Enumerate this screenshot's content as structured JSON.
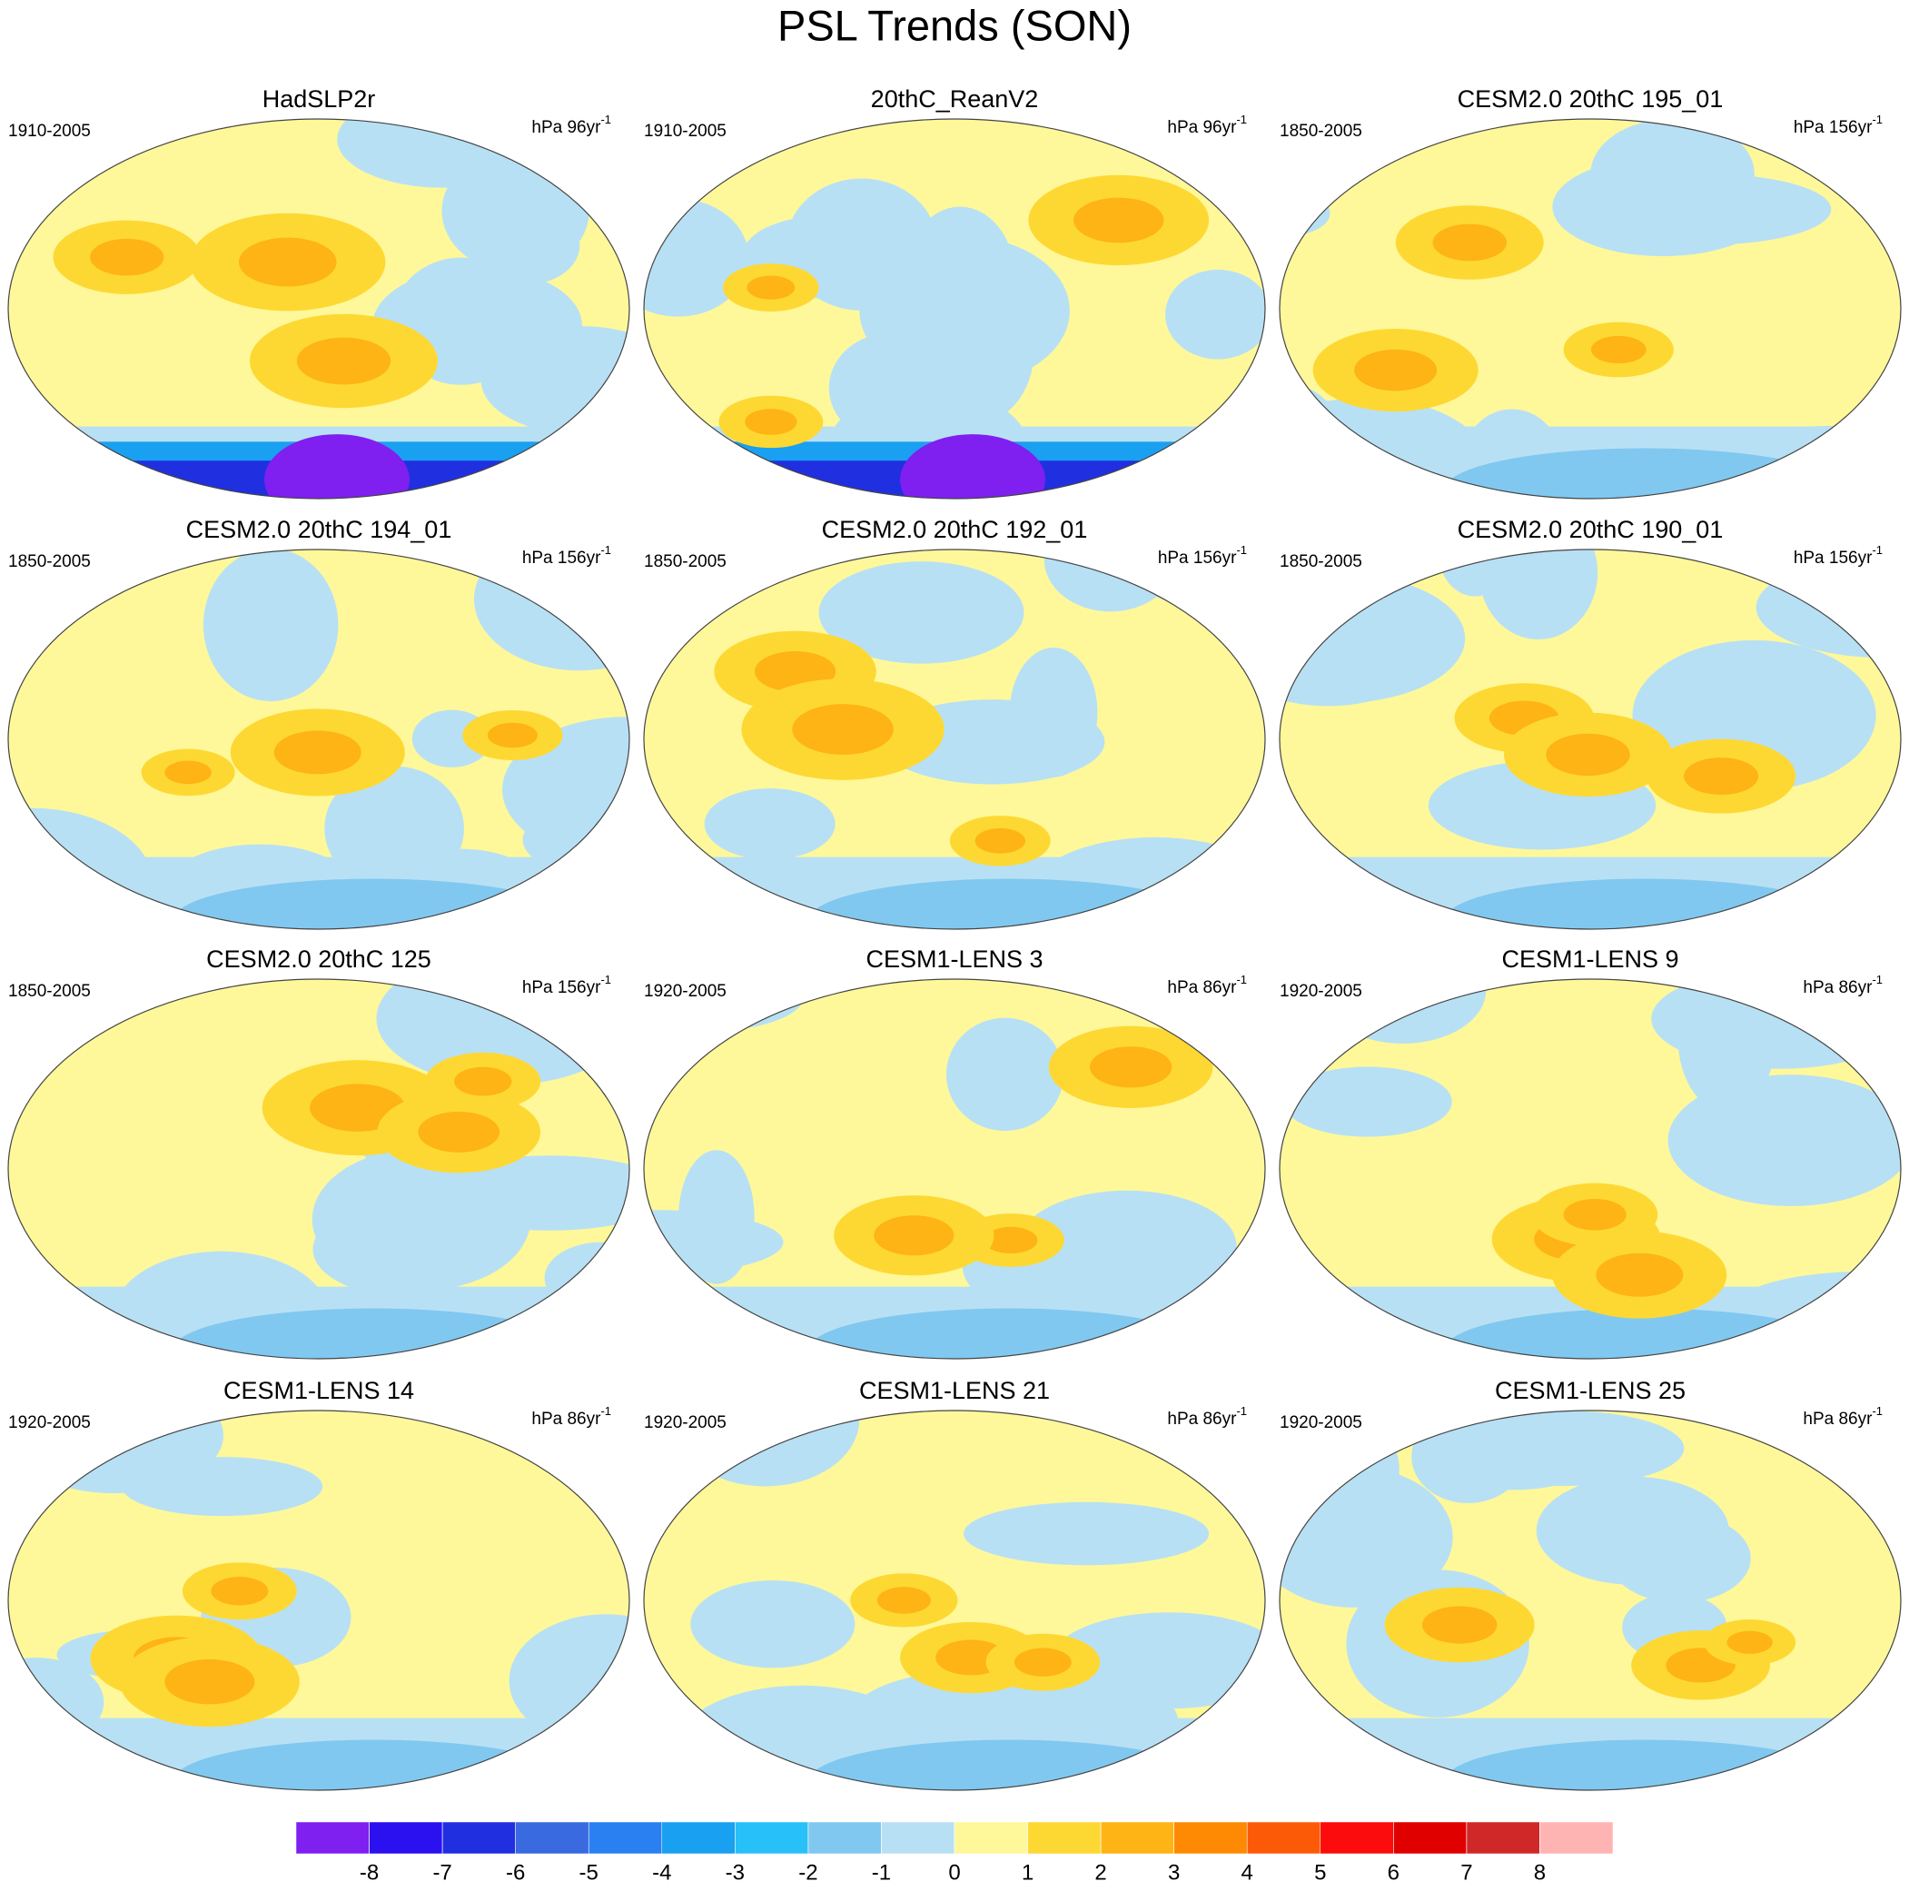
{
  "title": "PSL Trends (SON)",
  "panels": [
    {
      "title": "HadSLP2r",
      "period": "1910-2005",
      "units": "hPa 96yr",
      "units_sup": "-1"
    },
    {
      "title": "20thC_ReanV2",
      "period": "1910-2005",
      "units": "hPa 96yr",
      "units_sup": "-1"
    },
    {
      "title": "CESM2.0 20thC 195_01",
      "period": "1850-2005",
      "units": "hPa 156yr",
      "units_sup": "-1"
    },
    {
      "title": "CESM2.0 20thC 194_01",
      "period": "1850-2005",
      "units": "hPa 156yr",
      "units_sup": "-1"
    },
    {
      "title": "CESM2.0 20thC 192_01",
      "period": "1850-2005",
      "units": "hPa 156yr",
      "units_sup": "-1"
    },
    {
      "title": "CESM2.0 20thC 190_01",
      "period": "1850-2005",
      "units": "hPa 156yr",
      "units_sup": "-1"
    },
    {
      "title": "CESM2.0 20thC 125",
      "period": "1850-2005",
      "units": "hPa 156yr",
      "units_sup": "-1"
    },
    {
      "title": "CESM1-LENS 3",
      "period": "1920-2005",
      "units": "hPa 86yr",
      "units_sup": "-1"
    },
    {
      "title": "CESM1-LENS 9",
      "period": "1920-2005",
      "units": "hPa 86yr",
      "units_sup": "-1"
    },
    {
      "title": "CESM1-LENS 14",
      "period": "1920-2005",
      "units": "hPa 86yr",
      "units_sup": "-1"
    },
    {
      "title": "CESM1-LENS 21",
      "period": "1920-2005",
      "units": "hPa 86yr",
      "units_sup": "-1"
    },
    {
      "title": "CESM1-LENS 25",
      "period": "1920-2005",
      "units": "hPa 86yr",
      "units_sup": "-1"
    }
  ],
  "colorbar": {
    "colors": [
      "#7f1ff0",
      "#2b10f0",
      "#2030e0",
      "#3a6ae0",
      "#2a80f0",
      "#1aa0f0",
      "#28c0f8",
      "#80c8f0",
      "#b8e0f4",
      "#fef89a",
      "#fed832",
      "#fdb414",
      "#fd8a02",
      "#fd5a08",
      "#fc0c0c",
      "#e00000",
      "#d02828",
      "#ffb4b4"
    ],
    "labels": [
      -8,
      -7,
      -6,
      -5,
      -4,
      -3,
      -2,
      -1,
      0,
      1,
      2,
      3,
      4,
      5,
      6,
      7,
      8
    ]
  }
}
